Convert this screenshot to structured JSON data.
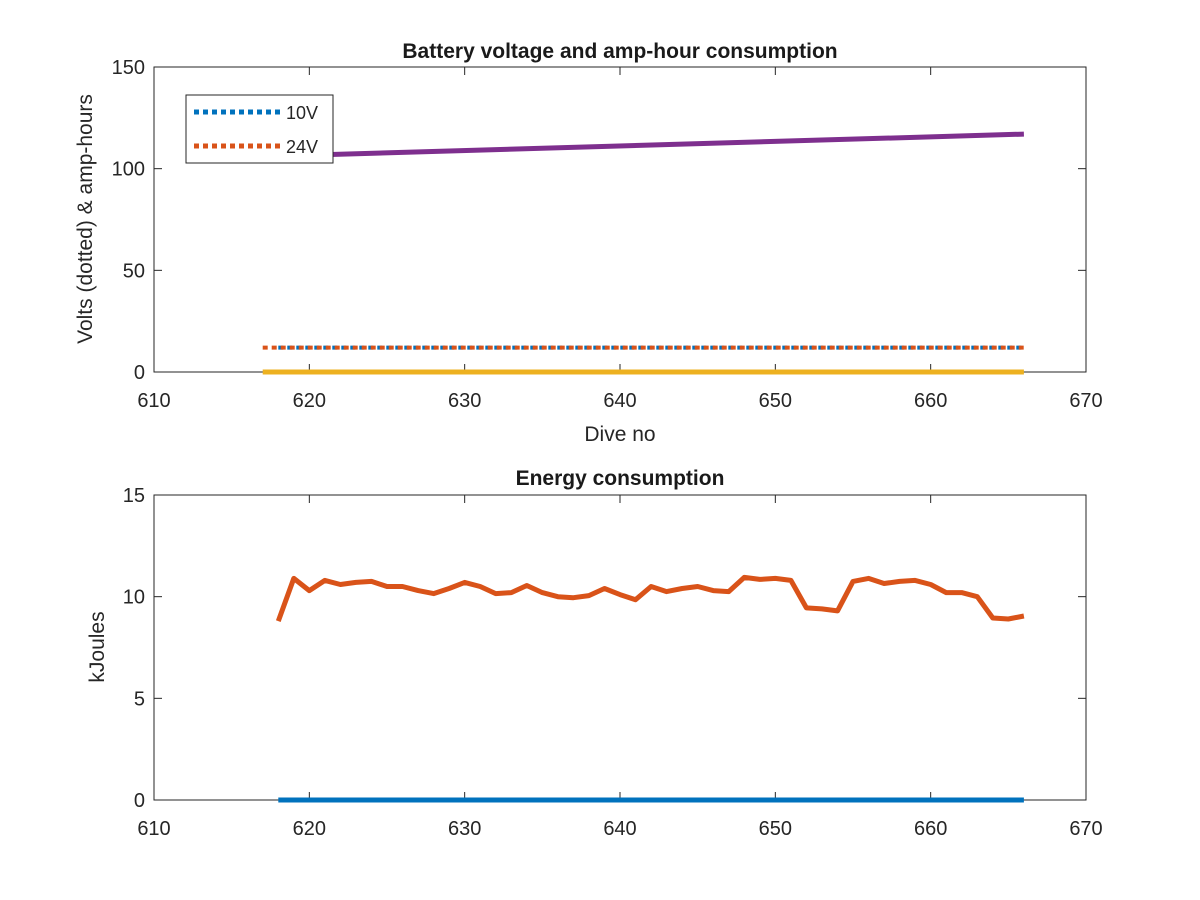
{
  "chart_data": [
    {
      "type": "line",
      "title": "Battery voltage and amp-hour consumption",
      "xlabel": "Dive no",
      "ylabel": "Volts (dotted) & amp-hours",
      "xlim": [
        610,
        670
      ],
      "ylim": [
        0,
        150
      ],
      "xticks": [
        610,
        620,
        630,
        640,
        650,
        660,
        670
      ],
      "yticks": [
        0,
        50,
        100,
        150
      ],
      "grid": false,
      "legend_position": "top-left",
      "series": [
        {
          "name": "10V",
          "style": "dotted",
          "color": "#0072BD",
          "x": [
            618,
            666
          ],
          "y": [
            12,
            12
          ]
        },
        {
          "name": "24V",
          "style": "dotted",
          "color": "#D95319",
          "x": [
            617,
            666
          ],
          "y": [
            12,
            12
          ]
        },
        {
          "style": "solid",
          "color": "#EDB120",
          "x": [
            617,
            666
          ],
          "y": [
            0,
            0
          ]
        },
        {
          "style": "solid",
          "color": "#7E2F8E",
          "x": [
            617,
            666
          ],
          "y": [
            106,
            117
          ]
        }
      ]
    },
    {
      "type": "line",
      "title": "Energy consumption",
      "xlabel": "",
      "ylabel": "kJoules",
      "xlim": [
        610,
        670
      ],
      "ylim": [
        0,
        15
      ],
      "xticks": [
        610,
        620,
        630,
        640,
        650,
        660,
        670
      ],
      "yticks": [
        0,
        5,
        10,
        15
      ],
      "grid": false,
      "series": [
        {
          "style": "solid",
          "color": "#0072BD",
          "x": [
            618,
            666
          ],
          "y": [
            0,
            0
          ]
        },
        {
          "style": "solid",
          "color": "#D95319",
          "x": [
            618,
            619,
            620,
            621,
            622,
            623,
            624,
            625,
            626,
            627,
            628,
            629,
            630,
            631,
            632,
            633,
            634,
            635,
            636,
            637,
            638,
            639,
            640,
            641,
            642,
            643,
            644,
            645,
            646,
            647,
            648,
            649,
            650,
            651,
            652,
            653,
            654,
            655,
            656,
            657,
            658,
            659,
            660,
            661,
            662,
            663,
            664,
            665,
            666
          ],
          "y": [
            8.8,
            10.9,
            10.3,
            10.8,
            10.6,
            10.7,
            10.75,
            10.5,
            10.5,
            10.3,
            10.15,
            10.4,
            10.7,
            10.5,
            10.15,
            10.2,
            10.55,
            10.2,
            10.0,
            9.95,
            10.05,
            10.4,
            10.1,
            9.85,
            10.5,
            10.25,
            10.4,
            10.5,
            10.3,
            10.25,
            10.95,
            10.85,
            10.9,
            10.8,
            9.45,
            9.4,
            9.3,
            10.75,
            10.9,
            10.65,
            10.75,
            10.8,
            10.6,
            10.2,
            10.2,
            10.0,
            8.95,
            8.9,
            9.05
          ]
        }
      ]
    }
  ]
}
